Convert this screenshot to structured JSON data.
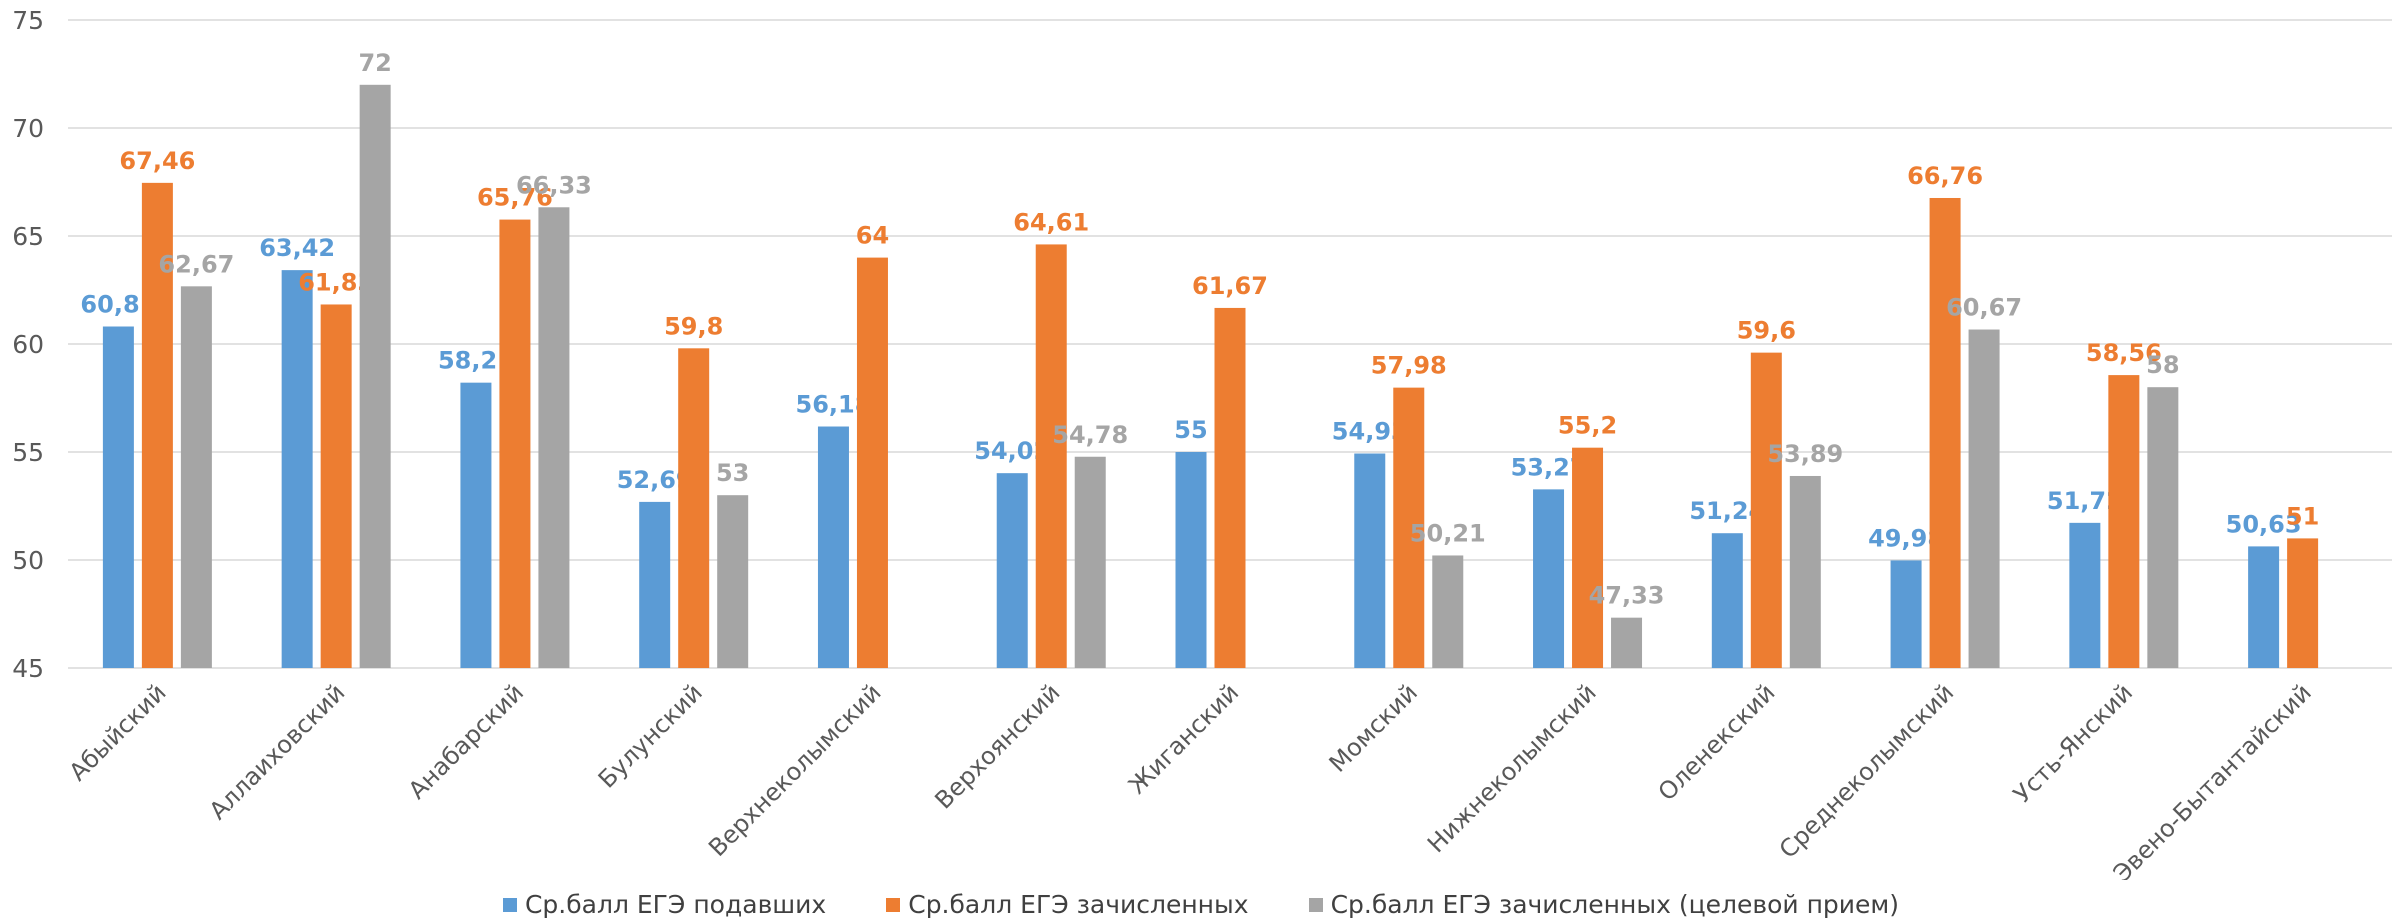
{
  "chart_data": {
    "type": "bar",
    "categories": [
      "Абыйский",
      "Аллаиховский",
      "Анабарский",
      "Булунский",
      "Верхнеколымский",
      "Верхоянский",
      "Жиганский",
      "Момский",
      "Нижнеколымский",
      "Оленекский",
      "Среднеколымский",
      "Усть-Янский",
      "Эвено-Бытантайский"
    ],
    "series": [
      {
        "name": "Ср.балл ЕГЭ подавших",
        "color": "#5B9BD5",
        "values": [
          60.81,
          63.42,
          58.21,
          52.69,
          56.18,
          54.02,
          55,
          54.93,
          53.27,
          51.24,
          49.98,
          51.72,
          50.63
        ],
        "labels": [
          "60,81",
          "63,42",
          "58,21",
          "52,69",
          "56,18",
          "54,02",
          "55",
          "54,93",
          "53,27",
          "51,24",
          "49,98",
          "51,72",
          "50,63"
        ]
      },
      {
        "name": "Ср.балл ЕГЭ зачисленных",
        "color": "#ED7D31",
        "values": [
          67.46,
          61.83,
          65.76,
          59.8,
          64,
          64.61,
          61.67,
          57.98,
          55.2,
          59.6,
          66.76,
          58.56,
          51
        ],
        "labels": [
          "67,46",
          "61,83",
          "65,76",
          "59,8",
          "64",
          "64,61",
          "61,67",
          "57,98",
          "55,2",
          "59,6",
          "66,76",
          "58,56",
          "51"
        ]
      },
      {
        "name": "Ср.балл ЕГЭ зачисленных (целевой прием)",
        "color": "#A5A5A5",
        "values": [
          62.67,
          72,
          66.33,
          53,
          null,
          54.78,
          null,
          50.21,
          47.33,
          53.89,
          60.67,
          58,
          null
        ],
        "labels": [
          "62,67",
          "72",
          "66,33",
          "53",
          "",
          "54,78",
          "",
          "50,21",
          "47,33",
          "53,89",
          "60,67",
          "58",
          ""
        ]
      }
    ],
    "ylim": [
      45,
      75
    ],
    "yticks": [
      45,
      50,
      55,
      60,
      65,
      70,
      75
    ],
    "grid": true,
    "legend_position": "bottom",
    "title": "",
    "xlabel": "",
    "ylabel": ""
  }
}
